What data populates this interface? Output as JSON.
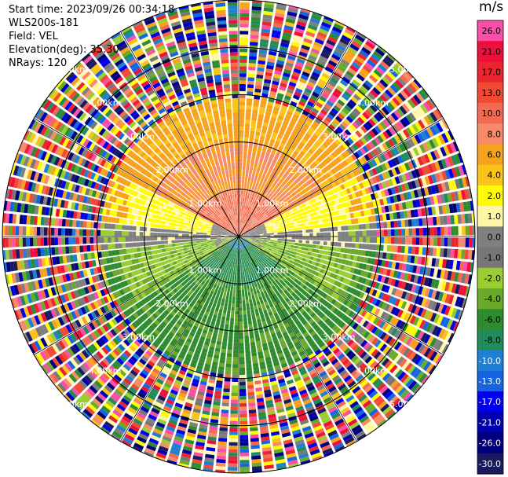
{
  "header": {
    "start_time": "Start time: 2023/09/26 00:34:18",
    "instrument": "WLS200s-181",
    "field": "Field: VEL",
    "elevation": "Elevation(deg): 35.30",
    "nrays": "NRays: 120"
  },
  "colorbar": {
    "unit": "m/s",
    "ticks": [
      "26.0",
      "21.0",
      "17.0",
      "13.0",
      "10.0",
      "8.0",
      "6.0",
      "4.0",
      "2.0",
      "1.0",
      "0.0",
      "-1.0",
      "-2.0",
      "-4.0",
      "-6.0",
      "-8.0",
      "-10.0",
      "-13.0",
      "-17.0",
      "-21.0",
      "-26.0",
      "-30.0"
    ],
    "colors": [
      "#f94fa8",
      "#ee0f3c",
      "#e9262e",
      "#f04a34",
      "#f46a50",
      "#f78a68",
      "#f7a21e",
      "#f9c31a",
      "#fffb05",
      "#fff7a6",
      "#808080",
      "#777777",
      "#9acd32",
      "#6aaa2a",
      "#2e8b2e",
      "#228b5b",
      "#1e7fd3",
      "#1565e0",
      "#0000ee",
      "#0000b0",
      "#00007a",
      "#1a1a60"
    ]
  },
  "chart_data": {
    "type": "heatmap",
    "projection": "polar-ppi",
    "field": "VEL",
    "n_rays": 120,
    "range_rings_km": [
      1.0,
      2.0,
      3.0,
      4.0,
      5.0
    ],
    "ring_labels": [
      "1.00km",
      "2.00km",
      "3.00km",
      "4.00km",
      "5.00km"
    ],
    "spokes_deg": [
      0,
      30,
      60,
      90,
      120,
      150,
      180,
      210,
      240,
      270,
      300,
      330
    ],
    "max_range_km": 5.0,
    "velocity_range": [
      -30.0,
      26.0
    ],
    "regions": [
      {
        "sector": "north",
        "range_km": [
          0,
          2.5
        ],
        "value": 8.0
      },
      {
        "sector": "north",
        "range_km": [
          2.5,
          3.2
        ],
        "value": 6.0
      },
      {
        "sector": "northwest-northeast band",
        "range_km": [
          1.5,
          2.4
        ],
        "value": 2.0
      },
      {
        "sector": "east-west band",
        "range_km": [
          0,
          2.5
        ],
        "value": 0.0
      },
      {
        "sector": "south",
        "range_km": [
          0,
          1.2
        ],
        "value": -6.0
      },
      {
        "sector": "south",
        "range_km": [
          1.2,
          3.0
        ],
        "value": -6.0
      },
      {
        "sector": "southwest-southeast",
        "range_km": [
          0.5,
          2.7
        ],
        "value": -2.0
      },
      {
        "sector": "all",
        "range_km": [
          3.0,
          5.0
        ],
        "value": "noise"
      }
    ]
  }
}
